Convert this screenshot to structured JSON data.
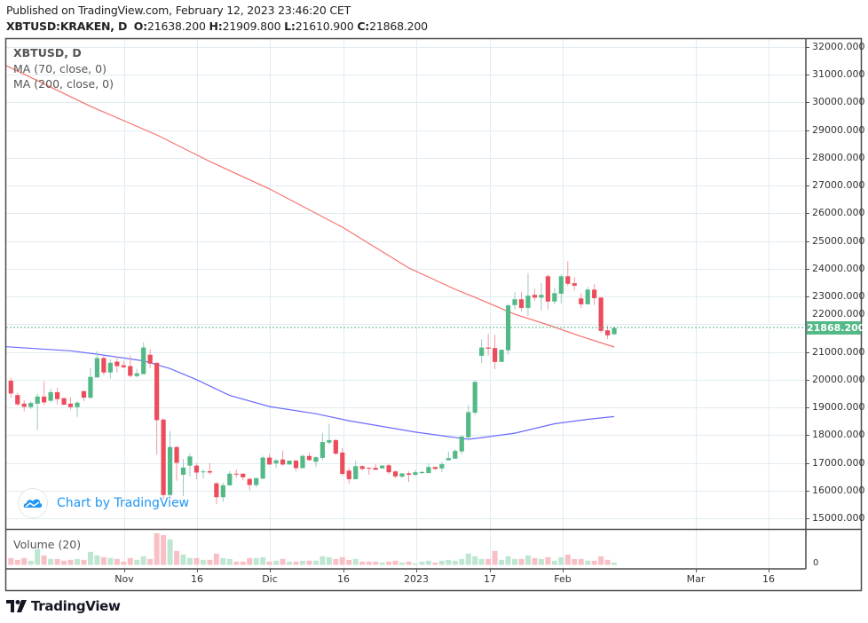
{
  "header": {
    "published": "Published on TradingView.com, February 12, 2023 23:46:20 CET",
    "symbol": "XBTUSD:KRAKEN, D",
    "o_label": "O:",
    "o_value": "21638.200",
    "h_label": "H:",
    "h_value": "21909.800",
    "l_label": "L:",
    "l_value": "21610.900",
    "c_label": "C:",
    "c_value": "21868.200"
  },
  "legend": {
    "title": "XBTUSD, D",
    "ma1": "MA (70, close, 0)",
    "ma2": "MA (200, close, 0)",
    "volume": "Volume (20)"
  },
  "watermark": {
    "text": "Chart by TradingView"
  },
  "footer": {
    "brand": "TradingView"
  },
  "colors": {
    "up": "#53b987",
    "down": "#eb4d5c",
    "up_volume": "#bfe6d3",
    "down_volume": "#f8c0c5",
    "ma_red": "#f5726e",
    "ma_blue": "#6a6aff",
    "grid": "#e1ecf2",
    "watermark": "#2196f3"
  },
  "chart_data": {
    "type": "candlestick",
    "symbol": "XBTUSD:KRAKEN",
    "interval": "D",
    "ylim": [
      15000,
      32000
    ],
    "grid": true,
    "y_ticks": [
      "32000.000",
      "31000.000",
      "30000.000",
      "29000.000",
      "28000.000",
      "27000.000",
      "26000.000",
      "25000.000",
      "24000.000",
      "23000.000",
      "22000.000",
      "21000.000",
      "20000.000",
      "19000.000",
      "18000.000",
      "17000.000",
      "16000.000",
      "15000.000"
    ],
    "x_ticks": [
      "Nov",
      "16",
      "Dic",
      "16",
      "2023",
      "17",
      "Feb",
      "Mar",
      "16"
    ],
    "last_price": "21868.200",
    "volume_axis_tick": "0",
    "ohlc": [
      [
        19960,
        20070,
        19340,
        19500
      ],
      [
        19445,
        19520,
        19050,
        19110
      ],
      [
        19135,
        19260,
        18860,
        19020
      ],
      [
        19010,
        19230,
        18940,
        19160
      ],
      [
        19135,
        19500,
        18180,
        19390
      ],
      [
        19390,
        19940,
        19090,
        19180
      ],
      [
        19240,
        19680,
        19180,
        19550
      ],
      [
        19550,
        19710,
        19110,
        19300
      ],
      [
        19330,
        19370,
        19070,
        19100
      ],
      [
        19135,
        19360,
        18920,
        19010
      ],
      [
        19010,
        19230,
        18660,
        19170
      ],
      [
        19590,
        19590,
        19230,
        19350
      ],
      [
        19350,
        20420,
        19300,
        20100
      ],
      [
        20080,
        21030,
        20080,
        20780
      ],
      [
        20780,
        20870,
        20170,
        20260
      ],
      [
        20260,
        20740,
        20040,
        20610
      ],
      [
        20650,
        20840,
        20260,
        20490
      ],
      [
        20520,
        20680,
        20410,
        20450
      ],
      [
        20490,
        20870,
        20080,
        20140
      ],
      [
        20130,
        20390,
        20080,
        20230
      ],
      [
        20200,
        21350,
        20200,
        21160
      ],
      [
        20900,
        21100,
        20420,
        20580
      ],
      [
        20610,
        20610,
        17290,
        18540
      ],
      [
        18560,
        18610,
        15690,
        15840
      ],
      [
        15840,
        18150,
        15740,
        17570
      ],
      [
        17570,
        17610,
        16360,
        17000
      ],
      [
        16570,
        17140,
        15810,
        16830
      ],
      [
        16900,
        17340,
        16510,
        17230
      ],
      [
        16900,
        16990,
        16400,
        16650
      ],
      [
        16670,
        16760,
        16430,
        16690
      ],
      [
        16700,
        17000,
        16570,
        16650
      ],
      [
        16260,
        16310,
        15510,
        15760
      ],
      [
        15760,
        16280,
        15600,
        16190
      ],
      [
        16190,
        16710,
        16190,
        16610
      ],
      [
        16610,
        16760,
        16460,
        16590
      ],
      [
        16610,
        16610,
        16370,
        16480
      ],
      [
        16420,
        16460,
        16010,
        16200
      ],
      [
        16200,
        16450,
        16120,
        16450
      ],
      [
        16430,
        17260,
        16430,
        17190
      ],
      [
        17190,
        17320,
        16940,
        16940
      ],
      [
        16980,
        17140,
        16810,
        17090
      ],
      [
        17120,
        17440,
        16900,
        16940
      ],
      [
        16940,
        17080,
        16940,
        17080
      ],
      [
        17080,
        17110,
        16700,
        16810
      ],
      [
        16810,
        17310,
        16810,
        17250
      ],
      [
        17250,
        17370,
        17070,
        17100
      ],
      [
        17040,
        17240,
        16850,
        17200
      ],
      [
        17180,
        18080,
        17090,
        17750
      ],
      [
        17730,
        18400,
        17660,
        17820
      ],
      [
        17820,
        17850,
        17290,
        17330
      ],
      [
        17370,
        17530,
        16540,
        16600
      ],
      [
        16720,
        16820,
        16250,
        16410
      ],
      [
        16410,
        17080,
        16410,
        16880
      ],
      [
        16880,
        16910,
        16730,
        16780
      ],
      [
        16820,
        16840,
        16570,
        16790
      ],
      [
        16820,
        16960,
        16750,
        16750
      ],
      [
        16800,
        16920,
        16800,
        16900
      ],
      [
        16910,
        16970,
        16590,
        16660
      ],
      [
        16690,
        16730,
        16440,
        16510
      ],
      [
        16500,
        16620,
        16470,
        16620
      ],
      [
        16620,
        16690,
        16310,
        16570
      ],
      [
        16570,
        16750,
        16520,
        16660
      ],
      [
        16630,
        16700,
        16600,
        16670
      ],
      [
        16630,
        16980,
        16630,
        16850
      ],
      [
        16850,
        16850,
        16750,
        16780
      ],
      [
        16800,
        17040,
        16670,
        16950
      ],
      [
        17090,
        17400,
        17090,
        17170
      ],
      [
        17150,
        17490,
        17150,
        17430
      ],
      [
        17410,
        17980,
        17310,
        17950
      ],
      [
        17920,
        19090,
        17810,
        18830
      ],
      [
        18810,
        19980,
        18720,
        19920
      ],
      [
        20860,
        21460,
        20610,
        21160
      ],
      [
        21160,
        21650,
        20860,
        21120
      ],
      [
        21140,
        21620,
        20380,
        20640
      ],
      [
        20640,
        21080,
        20640,
        21080
      ],
      [
        21060,
        22740,
        20900,
        22680
      ],
      [
        22690,
        23160,
        22530,
        22900
      ],
      [
        22900,
        23160,
        22460,
        22590
      ],
      [
        22590,
        23830,
        22300,
        23030
      ],
      [
        23060,
        23280,
        22850,
        22960
      ],
      [
        22960,
        23480,
        22500,
        23060
      ],
      [
        23730,
        23800,
        22530,
        22820
      ],
      [
        22820,
        23320,
        22720,
        23120
      ],
      [
        23100,
        23800,
        22750,
        23730
      ],
      [
        23730,
        24280,
        23390,
        23460
      ],
      [
        23480,
        23700,
        23220,
        23390
      ],
      [
        22930,
        23120,
        22590,
        22720
      ],
      [
        22720,
        23350,
        22720,
        23250
      ],
      [
        23250,
        23450,
        22690,
        22940
      ],
      [
        22960,
        22990,
        21690,
        21760
      ],
      [
        21780,
        21950,
        21470,
        21600
      ],
      [
        21638.2,
        21909.8,
        21610.9,
        21868.2
      ]
    ],
    "volume_relative": [
      23,
      17,
      23,
      14,
      53,
      32,
      20,
      20,
      14,
      17,
      20,
      17,
      44,
      32,
      26,
      23,
      20,
      11,
      23,
      17,
      29,
      20,
      107,
      101,
      86,
      47,
      35,
      23,
      23,
      17,
      17,
      38,
      23,
      20,
      11,
      11,
      23,
      23,
      26,
      11,
      14,
      20,
      11,
      11,
      14,
      14,
      14,
      29,
      26,
      20,
      26,
      17,
      20,
      11,
      11,
      11,
      8,
      11,
      14,
      8,
      11,
      5,
      11,
      14,
      8,
      14,
      17,
      14,
      20,
      38,
      29,
      20,
      20,
      47,
      17,
      29,
      20,
      20,
      32,
      23,
      20,
      26,
      14,
      26,
      35,
      20,
      20,
      14,
      14,
      29,
      17,
      8
    ],
    "ma_red": {
      "bar_index": [
        0,
        12,
        22,
        30,
        39,
        50,
        60,
        67,
        70,
        76,
        81,
        86,
        91
      ],
      "values": [
        31330,
        29860,
        28830,
        27870,
        26880,
        25500,
        24030,
        23260,
        22970,
        22360,
        21980,
        21560,
        21180
      ]
    },
    "ma_blue": {
      "bar_index": [
        0,
        9,
        13,
        20,
        24,
        28,
        33,
        39,
        46,
        51,
        61,
        69,
        71,
        76,
        82,
        87,
        91
      ],
      "values": [
        21190,
        21040,
        20920,
        20680,
        20400,
        20000,
        19430,
        19030,
        18770,
        18520,
        18110,
        17850,
        17910,
        18070,
        18410,
        18570,
        18670
      ]
    }
  }
}
